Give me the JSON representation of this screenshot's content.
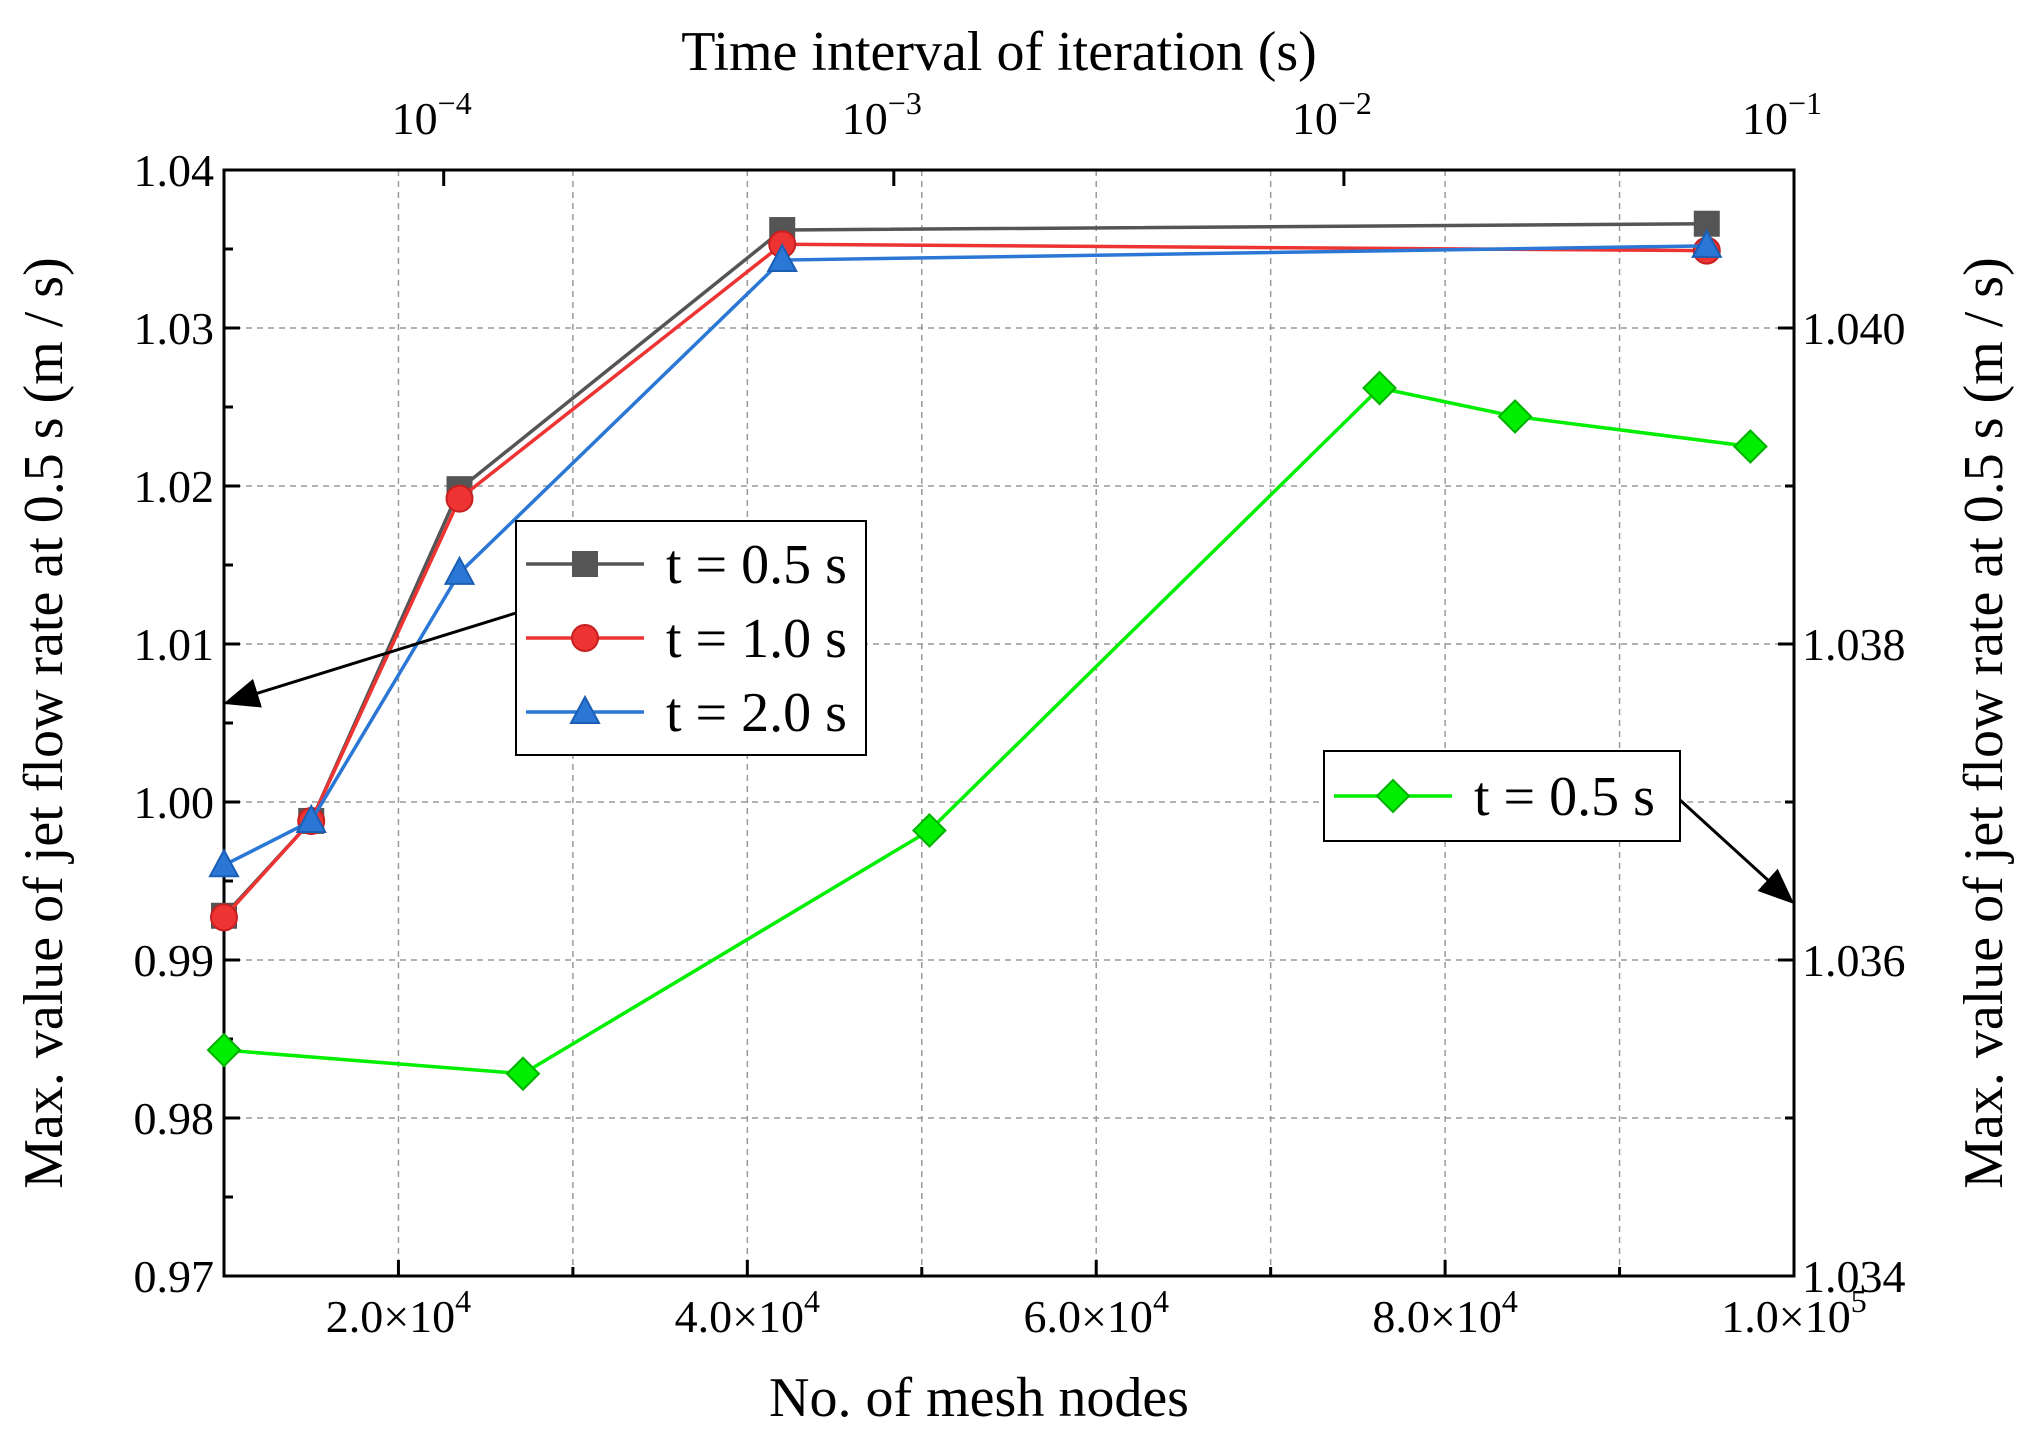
{
  "chart_data": {
    "type": "line",
    "xlabel_bottom": "No. of mesh nodes",
    "xlabel_top": "Time interval of iteration (s)",
    "ylabel_left": "Max. value of jet flow rate at 0.5 s (m / s)",
    "ylabel_right": "Max. value of jet flow rate at 0.5 s (m / s)",
    "x_bottom": {
      "range": [
        10000,
        100000
      ],
      "ticks": [
        {
          "value": 20000,
          "mantissa": "2.0×10",
          "exp": "4"
        },
        {
          "value": 40000,
          "mantissa": "4.0×10",
          "exp": "4"
        },
        {
          "value": 60000,
          "mantissa": "6.0×10",
          "exp": "4"
        },
        {
          "value": 80000,
          "mantissa": "8.0×10",
          "exp": "4"
        },
        {
          "value": 100000,
          "mantissa": "1.0×10",
          "exp": "5"
        }
      ],
      "minor_ticks": [
        30000,
        50000,
        70000,
        90000
      ]
    },
    "x_top": {
      "scale": "log",
      "range": [
        3.25e-05,
        0.1
      ],
      "ticks": [
        {
          "value": 0.0001,
          "mantissa": "10",
          "exp": "−4"
        },
        {
          "value": 0.001,
          "mantissa": "10",
          "exp": "−3"
        },
        {
          "value": 0.01,
          "mantissa": "10",
          "exp": "−2"
        },
        {
          "value": 0.1,
          "mantissa": "10",
          "exp": "−1"
        }
      ]
    },
    "y_left": {
      "range": [
        0.97,
        1.04
      ],
      "ticks": [
        {
          "value": 0.97,
          "label": "0.97"
        },
        {
          "value": 0.98,
          "label": "0.98"
        },
        {
          "value": 0.99,
          "label": "0.99"
        },
        {
          "value": 1.0,
          "label": "1.00"
        },
        {
          "value": 1.01,
          "label": "1.01"
        },
        {
          "value": 1.02,
          "label": "1.02"
        },
        {
          "value": 1.03,
          "label": "1.03"
        },
        {
          "value": 1.04,
          "label": "1.04"
        }
      ]
    },
    "y_right": {
      "range": [
        1.034,
        1.041
      ],
      "ticks": [
        {
          "value": 1.034,
          "label": "1.034"
        },
        {
          "value": 1.036,
          "label": "1.036"
        },
        {
          "value": 1.038,
          "label": "1.038"
        },
        {
          "value": 1.04,
          "label": "1.040"
        }
      ]
    },
    "grid": true,
    "series": [
      {
        "name": "t = 0.5 s",
        "axis": "bottom-left",
        "color": "#555555",
        "marker": "square",
        "x": [
          10000,
          15000,
          23500,
          42000,
          95000
        ],
        "y": [
          0.9928,
          0.9988,
          1.0198,
          1.0362,
          1.0366
        ]
      },
      {
        "name": "t = 1.0 s",
        "axis": "bottom-left",
        "color": "#ee3333",
        "marker": "circle",
        "x": [
          10000,
          15000,
          23500,
          42000,
          95000
        ],
        "y": [
          0.9927,
          0.9988,
          1.0192,
          1.0353,
          1.0349
        ]
      },
      {
        "name": "t = 2.0 s",
        "axis": "bottom-left",
        "color": "#2b77d6",
        "marker": "triangle",
        "x": [
          10000,
          15000,
          23500,
          42000,
          95000
        ],
        "y": [
          0.996,
          0.9988,
          1.0145,
          1.0343,
          1.0352
        ]
      },
      {
        "name": "t = 0.5 s",
        "axis": "top-right",
        "color": "#00ee00",
        "marker": "diamond",
        "x": [
          3.25e-05,
          0.00015,
          0.0012,
          0.012,
          0.024,
          0.08
        ],
        "y": [
          1.03543,
          1.03528,
          1.03682,
          1.03962,
          1.03944,
          1.03925
        ]
      }
    ],
    "legends": [
      {
        "placement": "center-left",
        "series": [
          0,
          1,
          2
        ]
      },
      {
        "placement": "center-right",
        "series": [
          3
        ]
      }
    ]
  }
}
